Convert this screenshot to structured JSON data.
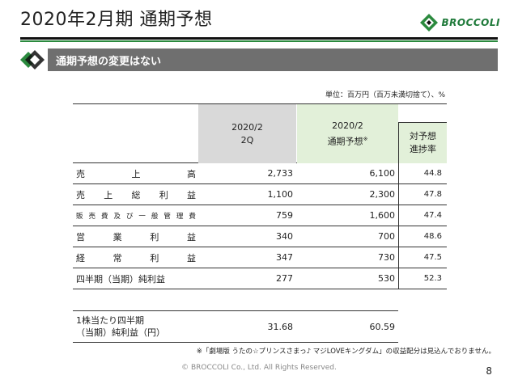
{
  "header": {
    "title": "2020年2月期 通期予想",
    "logo_text": "BROCCOLI",
    "brand_green": "#2b8a3e"
  },
  "section": {
    "title": "通期予想の変更はない",
    "bar_color": "#6f6f6f"
  },
  "unit_note": "単位：百万円（百万未満切捨て）、%",
  "table": {
    "col_2q_line1": "2020/2",
    "col_2q_line2": "2Q",
    "col_fy_line1": "2020/2",
    "col_fy_line2": "通期予想",
    "col_fy_mark": "※",
    "col_pct_line1": "対予想",
    "col_pct_line2": "進捗率",
    "rows": [
      {
        "label": [
          "売",
          "上",
          "高"
        ],
        "v2q": "2,733",
        "vfy": "6,100",
        "pct": "44.8",
        "style": "spread"
      },
      {
        "label": [
          "売",
          "上",
          "総",
          "利",
          "益"
        ],
        "v2q": "1,100",
        "vfy": "2,300",
        "pct": "47.8",
        "style": "spread"
      },
      {
        "label": [
          "販",
          "売",
          "費",
          "及",
          "び",
          "一",
          "般",
          "管",
          "理",
          "費"
        ],
        "v2q": "759",
        "vfy": "1,600",
        "pct": "47.4",
        "style": "small"
      },
      {
        "label": [
          "営",
          "業",
          "利",
          "益"
        ],
        "v2q": "340",
        "vfy": "700",
        "pct": "48.6",
        "style": "spread"
      },
      {
        "label": [
          "経",
          "常",
          "利",
          "益"
        ],
        "v2q": "347",
        "vfy": "730",
        "pct": "47.5",
        "style": "spread"
      },
      {
        "label": [
          "四半期（当期）純利益"
        ],
        "v2q": "277",
        "vfy": "530",
        "pct": "52.3",
        "style": "plain"
      }
    ],
    "eps": {
      "label_line1": "1株当たり四半期",
      "label_line2": "（当期）純利益（円）",
      "v2q": "31.68",
      "vfy": "60.59"
    }
  },
  "footnote": "※「劇場版 うたの☆プリンスさまっ♪ マジLOVEキングダム」の収益配分は見込んでおりません。",
  "footer": {
    "copyright": "© BROCCOLI Co., Ltd. All Rights Reserved.",
    "page_number": "8"
  }
}
